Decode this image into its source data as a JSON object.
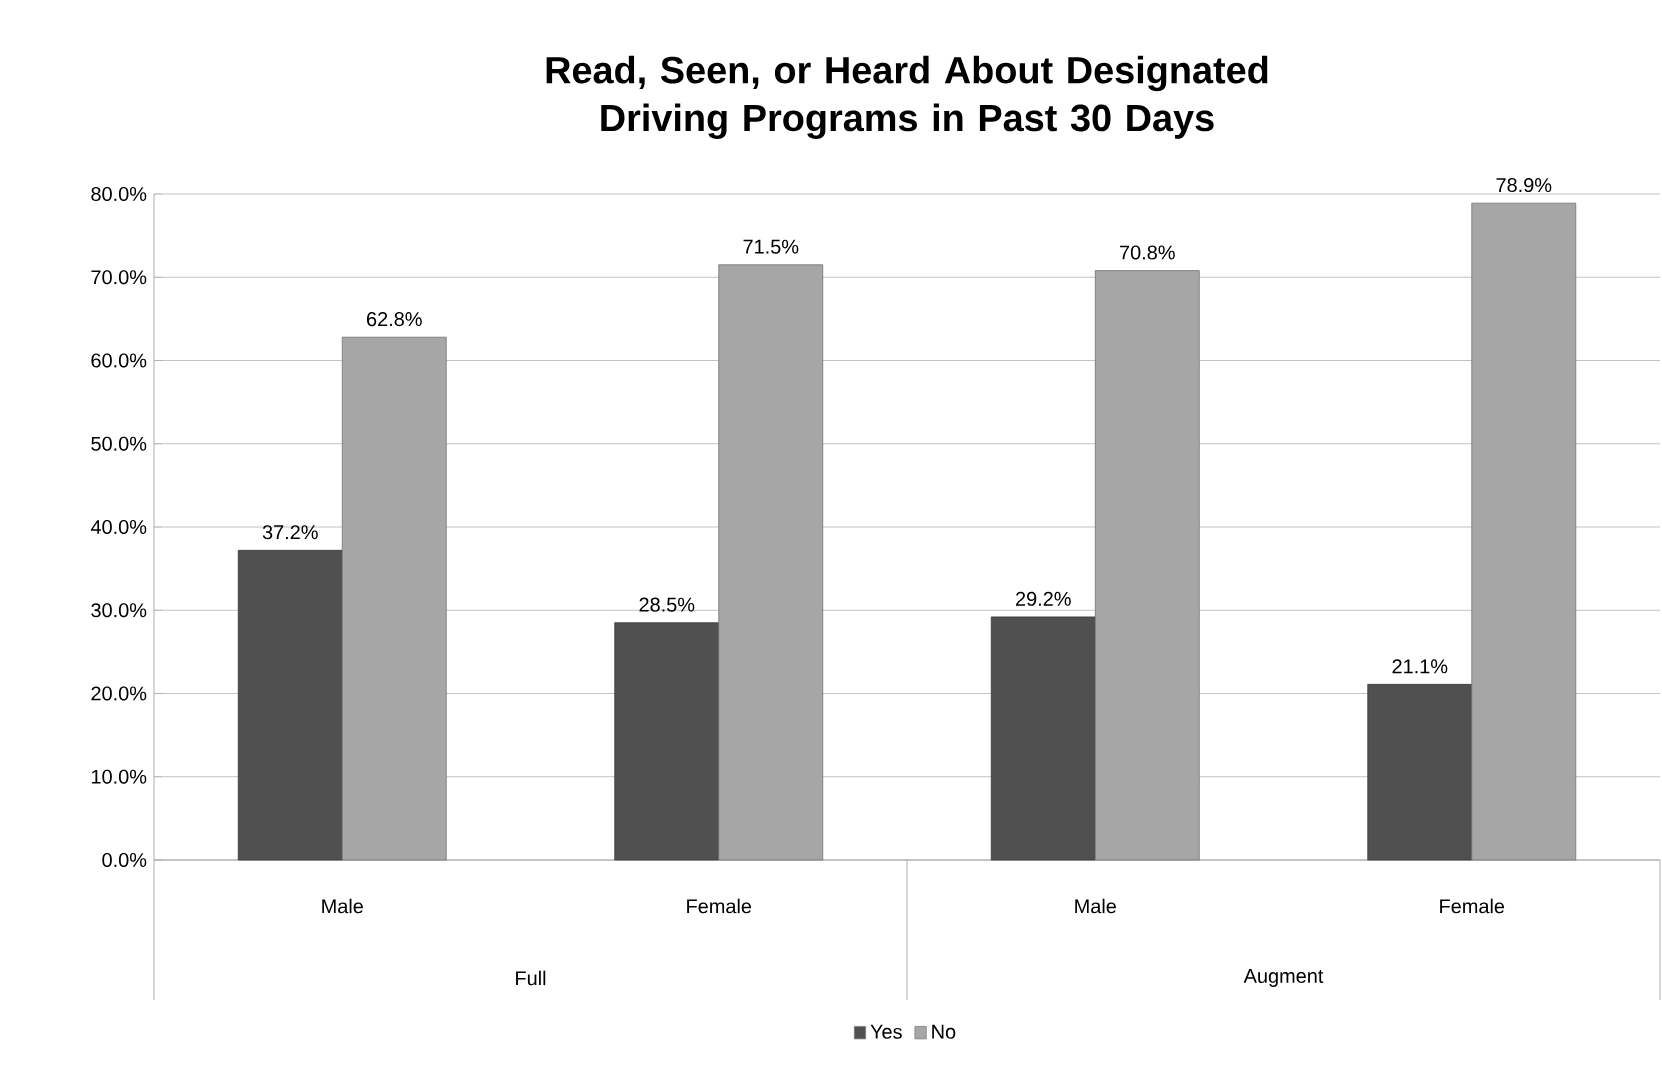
{
  "chart_data": {
    "type": "bar",
    "title": "Read, Seen, or Heard About Designated Driving Programs in Past 30 Days",
    "categories": [
      "Male",
      "Female",
      "Male",
      "Female"
    ],
    "annotations": [
      "Full",
      "Augment"
    ],
    "series": [
      {
        "name": "Yes",
        "color": "#505050",
        "values": [
          37.2,
          28.5,
          29.2,
          21.1
        ],
        "value_labels": [
          "37.2%",
          "28.5%",
          "29.2%",
          "21.1%"
        ]
      },
      {
        "name": "No",
        "color": "#a6a6a6",
        "values": [
          62.8,
          71.5,
          70.8,
          78.9
        ],
        "value_labels": [
          "62.8%",
          "71.5%",
          "70.8%",
          "78.9%"
        ]
      }
    ],
    "ylim": [
      0,
      80
    ],
    "yticks": [
      {
        "value": 0,
        "label": "0.0%"
      },
      {
        "value": 10,
        "label": "10.0%"
      },
      {
        "value": 20,
        "label": "20.0%"
      },
      {
        "value": 30,
        "label": "30.0%"
      },
      {
        "value": 40,
        "label": "40.0%"
      },
      {
        "value": 50,
        "label": "50.0%"
      },
      {
        "value": 60,
        "label": "60.0%"
      },
      {
        "value": 70,
        "label": "70.0%"
      },
      {
        "value": 80,
        "label": "80.0%"
      }
    ],
    "grid": "y",
    "legend": "bottom"
  }
}
